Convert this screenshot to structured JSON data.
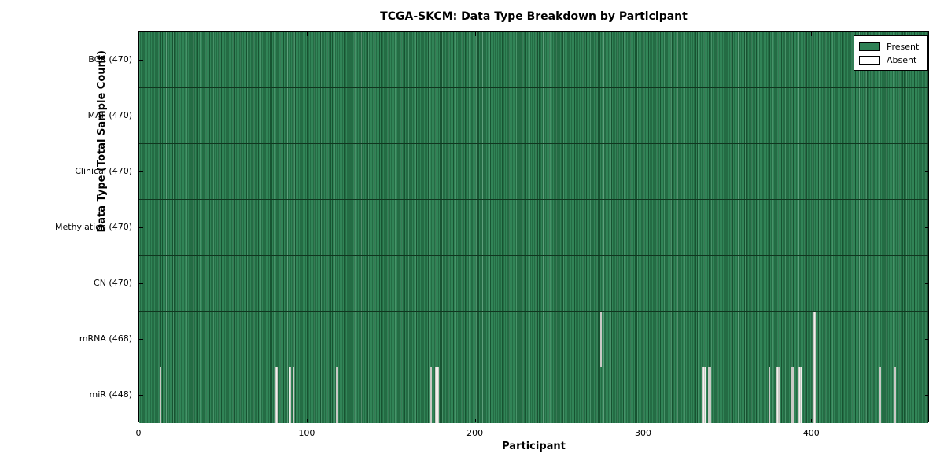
{
  "chart_data": {
    "type": "heatmap",
    "title": "TCGA-SKCM: Data Type Breakdown by Participant",
    "xlabel": "Participant",
    "ylabel": "Data Type (Total Sample Count)",
    "x_ticks": [
      0,
      100,
      200,
      300,
      400
    ],
    "x_range": [
      0,
      470
    ],
    "n_participants": 470,
    "legend_position": "upper right",
    "grid": false,
    "rows": [
      {
        "label": "BCR (470)",
        "data_type": "BCR",
        "present_count": 470,
        "absent_participants": []
      },
      {
        "label": "MAF (470)",
        "data_type": "MAF",
        "present_count": 470,
        "absent_participants": []
      },
      {
        "label": "Clinical (470)",
        "data_type": "Clinical",
        "present_count": 470,
        "absent_participants": []
      },
      {
        "label": "Methylation (470)",
        "data_type": "Methylation",
        "present_count": 470,
        "absent_participants": []
      },
      {
        "label": "CN (470)",
        "data_type": "CN",
        "present_count": 470,
        "absent_participants": []
      },
      {
        "label": "mRNA (468)",
        "data_type": "mRNA",
        "present_count": 468,
        "absent_participants": [
          274,
          401
        ]
      },
      {
        "label": "miR (448)",
        "data_type": "miR",
        "present_count": 448,
        "absent_participants": [
          12,
          81,
          89,
          91,
          117,
          173,
          176,
          177,
          335,
          336,
          338,
          339,
          374,
          379,
          380,
          387,
          388,
          392,
          393,
          401,
          440,
          449
        ]
      }
    ],
    "legend": [
      {
        "label": "Present",
        "color": "#2e8155"
      },
      {
        "label": "Absent",
        "color": "#ffffff"
      }
    ],
    "colors": {
      "present_fill": "#2e8155",
      "present_edge": "#175331",
      "absent_fill": "#f0f0ec",
      "frame": "#000000",
      "background": "#ffffff"
    }
  }
}
